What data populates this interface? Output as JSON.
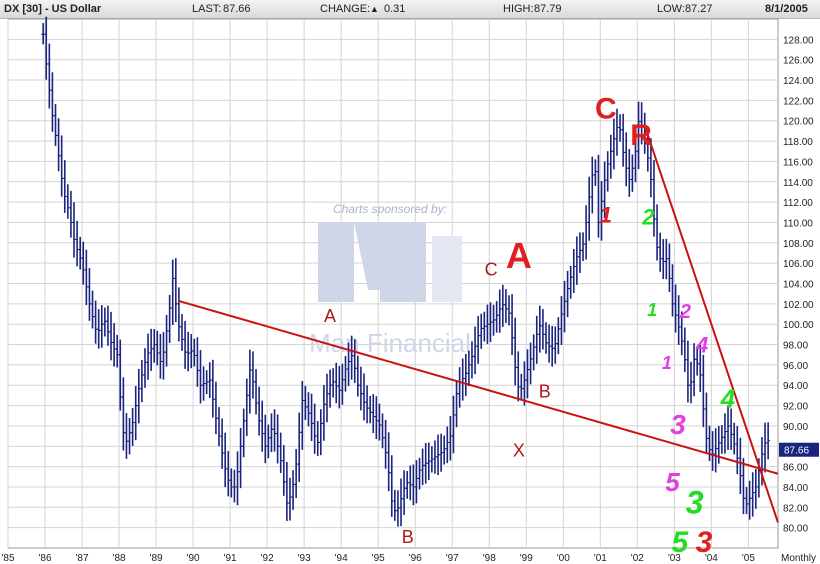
{
  "header": {
    "symbol": "DX [30] - US Dollar",
    "last_label": "LAST:",
    "last_value": "87.66",
    "change_label": "CHANGE:",
    "change_arrow": "▲",
    "change_value": "0.31",
    "high_label": "HIGH:",
    "high_value": "87.79",
    "low_label": "LOW:",
    "low_value": "87.27",
    "date": "8/1/2005"
  },
  "watermark": {
    "sponsor_text": "Charts sponsored by:",
    "brand_text": "Man Financial"
  },
  "chart_data": {
    "type": "ohlc",
    "frequency_label": "Monthly",
    "y_axis": {
      "min": 78,
      "max": 130,
      "ticks": [
        80,
        82,
        84,
        86,
        88,
        90,
        92,
        94,
        96,
        98,
        100,
        102,
        104,
        106,
        108,
        110,
        112,
        114,
        116,
        118,
        120,
        122,
        124,
        126,
        128
      ],
      "position": "right"
    },
    "x_axis": {
      "start": 1985.0,
      "end": 2005.8,
      "tick_years": [
        1985,
        1986,
        1987,
        1988,
        1989,
        1990,
        1991,
        1992,
        1993,
        1994,
        1995,
        1996,
        1997,
        1998,
        1999,
        2000,
        2001,
        2002,
        2003,
        2004,
        2005
      ],
      "tick_labels": [
        "'85",
        "'86",
        "'87",
        "'88",
        "'89",
        "'90",
        "'91",
        "'92",
        "'93",
        "'94",
        "'95",
        "'96",
        "'97",
        "'98",
        "'99",
        "'00",
        "'01",
        "'02",
        "'03",
        "'04",
        "'05"
      ]
    },
    "grid": true,
    "last_price_marker": {
      "value": 87.66,
      "label": "87.66"
    },
    "price_path": [
      [
        1985.95,
        128.5
      ],
      [
        1986.05,
        125.0
      ],
      [
        1986.2,
        120.5
      ],
      [
        1986.35,
        117.0
      ],
      [
        1986.5,
        113.0
      ],
      [
        1986.65,
        111.0
      ],
      [
        1986.8,
        108.0
      ],
      [
        1987.0,
        106.0
      ],
      [
        1987.2,
        102.0
      ],
      [
        1987.4,
        99.0
      ],
      [
        1987.6,
        100.5
      ],
      [
        1987.8,
        98.0
      ],
      [
        1987.95,
        97.0
      ],
      [
        1988.05,
        92.0
      ],
      [
        1988.15,
        88.0
      ],
      [
        1988.35,
        90.0
      ],
      [
        1988.55,
        94.0
      ],
      [
        1988.75,
        97.0
      ],
      [
        1988.95,
        98.0
      ],
      [
        1989.15,
        96.0
      ],
      [
        1989.35,
        101.0
      ],
      [
        1989.45,
        104.5
      ],
      [
        1989.6,
        100.0
      ],
      [
        1989.8,
        97.0
      ],
      [
        1990.0,
        97.5
      ],
      [
        1990.2,
        94.0
      ],
      [
        1990.45,
        94.5
      ],
      [
        1990.65,
        90.0
      ],
      [
        1990.85,
        86.0
      ],
      [
        1991.0,
        84.0
      ],
      [
        1991.15,
        84.0
      ],
      [
        1991.35,
        90.0
      ],
      [
        1991.55,
        96.0
      ],
      [
        1991.75,
        91.0
      ],
      [
        1991.95,
        88.0
      ],
      [
        1992.15,
        90.0
      ],
      [
        1992.35,
        87.0
      ],
      [
        1992.55,
        82.0
      ],
      [
        1992.75,
        85.0
      ],
      [
        1992.95,
        92.5
      ],
      [
        1993.15,
        91.0
      ],
      [
        1993.35,
        88.0
      ],
      [
        1993.55,
        92.5
      ],
      [
        1993.75,
        94.5
      ],
      [
        1993.95,
        93.5
      ],
      [
        1994.15,
        96.0
      ],
      [
        1994.3,
        97.0
      ],
      [
        1994.45,
        94.0
      ],
      [
        1994.65,
        92.0
      ],
      [
        1994.85,
        91.0
      ],
      [
        1995.05,
        90.0
      ],
      [
        1995.25,
        86.5
      ],
      [
        1995.4,
        81.5
      ],
      [
        1995.55,
        82.0
      ],
      [
        1995.75,
        84.5
      ],
      [
        1995.95,
        84.0
      ],
      [
        1996.15,
        86.0
      ],
      [
        1996.35,
        86.5
      ],
      [
        1996.55,
        87.0
      ],
      [
        1996.75,
        87.5
      ],
      [
        1996.95,
        89.0
      ],
      [
        1997.15,
        94.0
      ],
      [
        1997.35,
        95.0
      ],
      [
        1997.55,
        97.0
      ],
      [
        1997.75,
        99.5
      ],
      [
        1997.95,
        100.0
      ],
      [
        1998.15,
        100.5
      ],
      [
        1998.35,
        102.0
      ],
      [
        1998.55,
        101.0
      ],
      [
        1998.75,
        94.0
      ],
      [
        1998.85,
        93.5
      ],
      [
        1998.95,
        94.5
      ],
      [
        1999.15,
        97.0
      ],
      [
        1999.35,
        100.0
      ],
      [
        1999.55,
        98.0
      ],
      [
        1999.75,
        97.5
      ],
      [
        1999.95,
        101.0
      ],
      [
        2000.15,
        104.0
      ],
      [
        2000.35,
        106.5
      ],
      [
        2000.55,
        108.0
      ],
      [
        2000.75,
        114.0
      ],
      [
        2000.85,
        116.0
      ],
      [
        2000.95,
        110.0
      ],
      [
        2001.15,
        115.0
      ],
      [
        2001.35,
        118.0
      ],
      [
        2001.5,
        120.0
      ],
      [
        2001.65,
        116.0
      ],
      [
        2001.8,
        114.0
      ],
      [
        2001.95,
        117.0
      ],
      [
        2002.05,
        120.5
      ],
      [
        2002.2,
        118.0
      ],
      [
        2002.35,
        115.0
      ],
      [
        2002.5,
        108.0
      ],
      [
        2002.65,
        106.0
      ],
      [
        2002.8,
        106.5
      ],
      [
        2002.95,
        102.0
      ],
      [
        2003.1,
        100.0
      ],
      [
        2003.25,
        97.5
      ],
      [
        2003.4,
        93.0
      ],
      [
        2003.55,
        97.0
      ],
      [
        2003.7,
        95.0
      ],
      [
        2003.85,
        89.0
      ],
      [
        2004.0,
        87.0
      ],
      [
        2004.15,
        88.0
      ],
      [
        2004.3,
        89.0
      ],
      [
        2004.45,
        90.0
      ],
      [
        2004.6,
        88.5
      ],
      [
        2004.75,
        86.0
      ],
      [
        2004.9,
        82.0
      ],
      [
        2005.05,
        83.0
      ],
      [
        2005.2,
        84.0
      ],
      [
        2005.35,
        87.0
      ],
      [
        2005.5,
        89.0
      ],
      [
        2005.6,
        87.66
      ]
    ]
  },
  "annotations": {
    "trendline_long": {
      "from": [
        1989.6,
        102.3
      ],
      "to": [
        2005.8,
        85.3
      ],
      "color": "#cc1111"
    },
    "trendline_down": {
      "from": [
        2002.2,
        119.5
      ],
      "to": [
        2005.8,
        80.5
      ],
      "color": "#cc1111"
    },
    "wave_labels": [
      {
        "text": "A",
        "x": 1993.7,
        "y": 100.2,
        "color": "#b01818",
        "size": 18,
        "style": "serif"
      },
      {
        "text": "C",
        "x": 1998.05,
        "y": 104.8,
        "color": "#b01818",
        "size": 18,
        "style": "serif"
      },
      {
        "text": "A",
        "x": 1998.8,
        "y": 105.5,
        "color": "#e02020",
        "size": 36,
        "style": "sans"
      },
      {
        "text": "B",
        "x": 1999.5,
        "y": 92.8,
        "color": "#b01818",
        "size": 18,
        "style": "serif"
      },
      {
        "text": "X",
        "x": 1998.8,
        "y": 87.0,
        "color": "#b01818",
        "size": 18,
        "style": "serif"
      },
      {
        "text": "B",
        "x": 1995.8,
        "y": 78.5,
        "color": "#b01818",
        "size": 18,
        "style": "serif"
      },
      {
        "text": "C",
        "x": 2001.15,
        "y": 120.2,
        "color": "#e02020",
        "size": 30,
        "style": "sans"
      },
      {
        "text": "R",
        "x": 2002.1,
        "y": 117.6,
        "color": "#e02020",
        "size": 30,
        "style": "sans"
      }
    ],
    "wave_counts": [
      {
        "text": "1",
        "x": 2001.15,
        "y": 110.0,
        "color": "#e02020",
        "size": 22
      },
      {
        "text": "2",
        "x": 2002.3,
        "y": 109.8,
        "color": "#22dd22",
        "size": 22
      },
      {
        "text": "1",
        "x": 2002.4,
        "y": 100.8,
        "color": "#22dd22",
        "size": 18
      },
      {
        "text": "2",
        "x": 2003.3,
        "y": 100.6,
        "color": "#e040e0",
        "size": 20
      },
      {
        "text": "4",
        "x": 2003.75,
        "y": 97.2,
        "color": "#e040e0",
        "size": 22
      },
      {
        "text": "1",
        "x": 2002.8,
        "y": 95.6,
        "color": "#e040e0",
        "size": 18
      },
      {
        "text": "4",
        "x": 2004.45,
        "y": 91.8,
        "color": "#22dd22",
        "size": 26
      },
      {
        "text": "3",
        "x": 2003.1,
        "y": 89.2,
        "color": "#e040e0",
        "size": 28
      },
      {
        "text": "5",
        "x": 2002.95,
        "y": 83.6,
        "color": "#e040e0",
        "size": 26
      },
      {
        "text": "3",
        "x": 2003.55,
        "y": 81.4,
        "color": "#22dd22",
        "size": 32
      },
      {
        "text": "5",
        "x": 2003.15,
        "y": 77.6,
        "color": "#22dd22",
        "size": 30
      },
      {
        "text": "3",
        "x": 2003.8,
        "y": 77.6,
        "color": "#e02020",
        "size": 30
      }
    ]
  },
  "colors": {
    "bars": "#1a237e",
    "grid": "#d4d4d4",
    "axis_text": "#222222",
    "marker_bg": "#1a237e",
    "watermark": "#cfd6e8"
  }
}
